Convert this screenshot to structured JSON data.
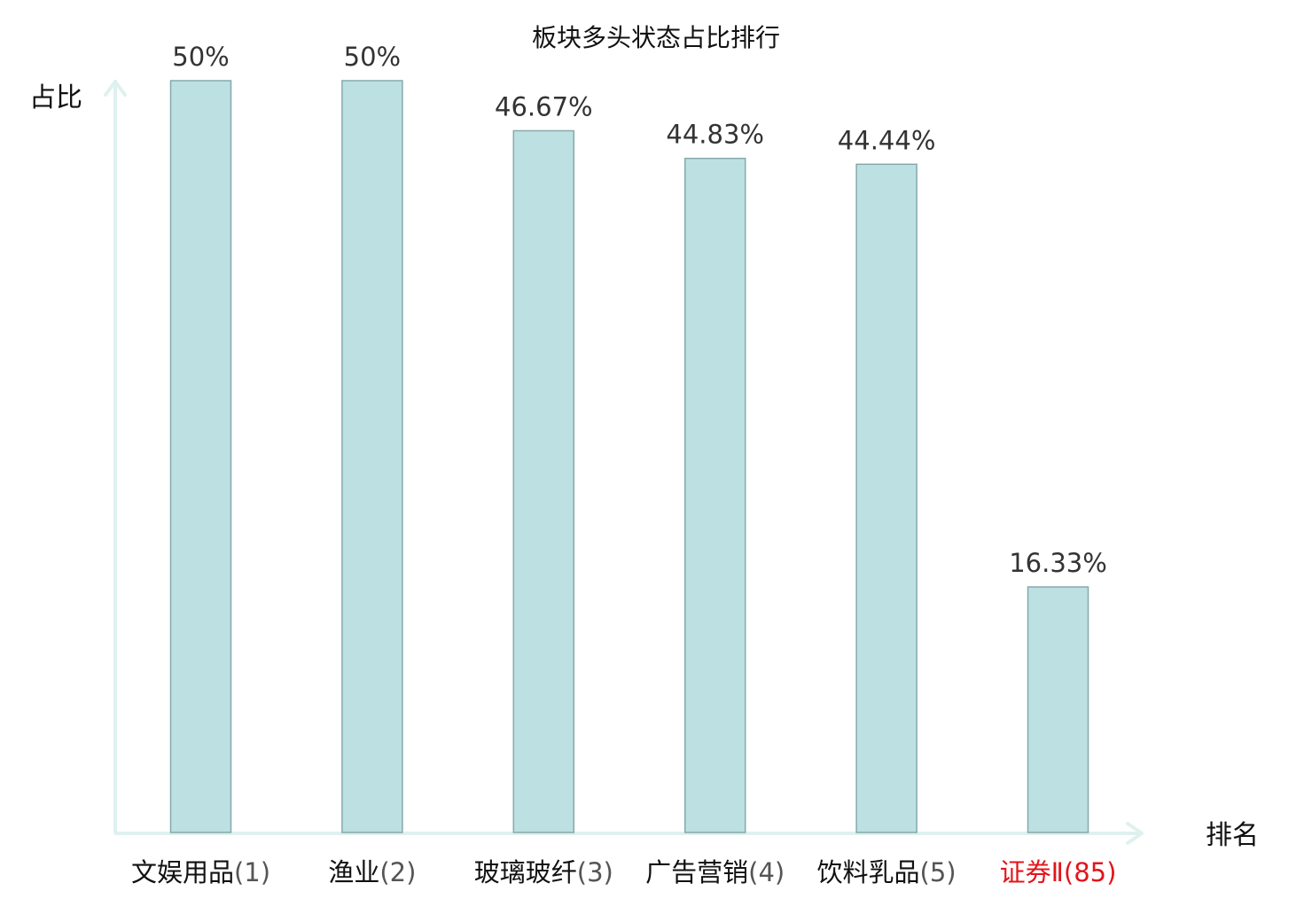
{
  "chart_data": {
    "type": "bar",
    "title": "板块多头状态占比排行",
    "xlabel": "排名",
    "ylabel": "占比",
    "categories": [
      "文娱用品",
      "渔业",
      "玻璃玻纤",
      "广告营销",
      "饮料乳品",
      "证券Ⅱ"
    ],
    "ranks": [
      "(1)",
      "(2)",
      "(3)",
      "(4)",
      "(5)",
      "(85)"
    ],
    "values": [
      50,
      50,
      46.67,
      44.83,
      44.44,
      16.33
    ],
    "value_labels": [
      "50%",
      "50%",
      "46.67%",
      "44.83%",
      "44.44%",
      "16.33%"
    ],
    "highlight_index": 5,
    "ylim": [
      0,
      50
    ],
    "grid": false,
    "legend": "none",
    "colors": {
      "bar_fill": "#bde0e3",
      "bar_stroke": "#86a9ab",
      "axis": "#dff1ee",
      "category_text": "#111111",
      "rank_text": "#555555",
      "highlight_text": "#e4141a",
      "value_text": "#333333"
    }
  }
}
